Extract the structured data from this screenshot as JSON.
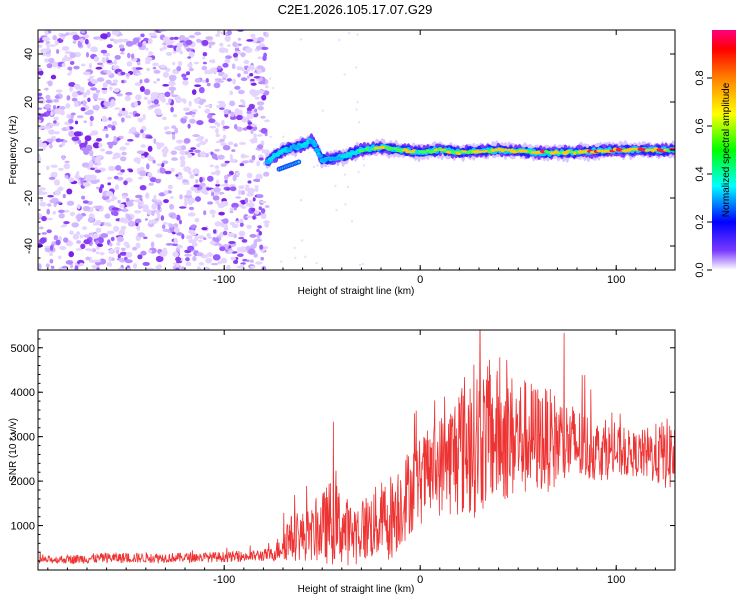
{
  "title": "C2E1.2026.105.17.07.G29",
  "colors": {
    "snr_line": "#ee3333",
    "axis": "#000000",
    "background": "#ffffff"
  },
  "chart_data": [
    {
      "type": "heatmap",
      "name": "spectrogram",
      "xlabel": "Height of straight line (km)",
      "ylabel": "Frequency (Hz)",
      "xlim": [
        -195,
        130
      ],
      "ylim": [
        -50,
        50
      ],
      "xticks": [
        -100,
        0,
        100
      ],
      "xtick_labels": [
        "-100",
        "0",
        "100"
      ],
      "yticks": [
        -40,
        -20,
        0,
        20,
        40
      ],
      "ytick_labels": [
        "-40",
        "-20",
        "0",
        "20",
        "40"
      ],
      "noise_region_x": [
        -195,
        -78
      ],
      "signal_track": [
        {
          "x": -78,
          "y": -5,
          "amp": 0.4
        },
        {
          "x": -70,
          "y": 0,
          "amp": 0.45
        },
        {
          "x": -60,
          "y": 2,
          "amp": 0.45
        },
        {
          "x": -55,
          "y": 4,
          "amp": 0.4
        },
        {
          "x": -50,
          "y": -4,
          "amp": 0.35
        },
        {
          "x": -40,
          "y": -3,
          "amp": 0.45
        },
        {
          "x": -30,
          "y": 0,
          "amp": 0.55
        },
        {
          "x": -20,
          "y": 1,
          "amp": 0.75
        },
        {
          "x": -10,
          "y": 0,
          "amp": 0.85
        },
        {
          "x": 0,
          "y": -1,
          "amp": 0.7
        },
        {
          "x": 10,
          "y": 0,
          "amp": 0.75
        },
        {
          "x": 20,
          "y": -1,
          "amp": 0.8
        },
        {
          "x": 40,
          "y": 0,
          "amp": 0.75
        },
        {
          "x": 60,
          "y": -1,
          "amp": 0.8
        },
        {
          "x": 80,
          "y": -1,
          "amp": 0.8
        },
        {
          "x": 100,
          "y": 0,
          "amp": 0.85
        },
        {
          "x": 110,
          "y": 0,
          "amp": 0.95
        },
        {
          "x": 130,
          "y": 0,
          "amp": 0.85
        }
      ],
      "colorbar": {
        "label": "Normalized spectral amplitude",
        "range": [
          0,
          1
        ],
        "ticks": [
          0.0,
          0.2,
          0.4,
          0.6,
          0.8
        ],
        "tick_labels": [
          "0.0",
          "0.2",
          "0.4",
          "0.6",
          "0.8"
        ],
        "colormap": [
          "#ffffff",
          "#7a3bff",
          "#0000ff",
          "#00ffff",
          "#00ff00",
          "#ffff00",
          "#ff8000",
          "#ff0000",
          "#ff0080"
        ]
      }
    },
    {
      "type": "line",
      "name": "snr",
      "xlabel": "Height of straight line (km)",
      "ylabel": "SNR (10 * v/v)",
      "xlim": [
        -195,
        130
      ],
      "ylim": [
        0,
        5400
      ],
      "xticks": [
        -100,
        0,
        100
      ],
      "xtick_labels": [
        "-100",
        "0",
        "100"
      ],
      "yticks": [
        1000,
        2000,
        3000,
        4000,
        5000
      ],
      "ytick_labels": [
        "1000",
        "2000",
        "3000",
        "4000",
        "5000"
      ],
      "envelope": [
        {
          "x": -195,
          "mean": 220,
          "spread": 80
        },
        {
          "x": -160,
          "mean": 270,
          "spread": 120
        },
        {
          "x": -120,
          "mean": 280,
          "spread": 110
        },
        {
          "x": -90,
          "mean": 300,
          "spread": 120
        },
        {
          "x": -75,
          "mean": 350,
          "spread": 150
        },
        {
          "x": -68,
          "mean": 700,
          "spread": 500
        },
        {
          "x": -55,
          "mean": 800,
          "spread": 600
        },
        {
          "x": -45,
          "mean": 1100,
          "spread": 1000
        },
        {
          "x": -35,
          "mean": 800,
          "spread": 700
        },
        {
          "x": -25,
          "mean": 1000,
          "spread": 800
        },
        {
          "x": -15,
          "mean": 1200,
          "spread": 1000
        },
        {
          "x": -5,
          "mean": 1800,
          "spread": 1000
        },
        {
          "x": 5,
          "mean": 2200,
          "spread": 1000
        },
        {
          "x": 15,
          "mean": 2500,
          "spread": 1300
        },
        {
          "x": 25,
          "mean": 2900,
          "spread": 1800
        },
        {
          "x": 35,
          "mean": 3000,
          "spread": 1600
        },
        {
          "x": 50,
          "mean": 3000,
          "spread": 1400
        },
        {
          "x": 70,
          "mean": 2900,
          "spread": 1100
        },
        {
          "x": 90,
          "mean": 2700,
          "spread": 700
        },
        {
          "x": 110,
          "mean": 2600,
          "spread": 500
        },
        {
          "x": 130,
          "mean": 2600,
          "spread": 900
        }
      ]
    }
  ]
}
